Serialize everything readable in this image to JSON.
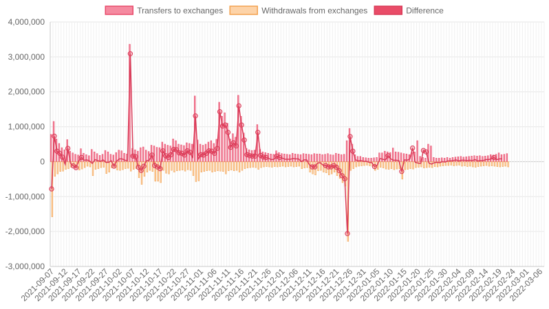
{
  "chart_data": {
    "type": "bar",
    "legend": [
      {
        "label": "Transfers to exchanges",
        "fill": "#f58aa0",
        "stroke": "#e84a6a"
      },
      {
        "label": "Withdrawals from exchanges",
        "fill": "#fdd3a8",
        "stroke": "#f3a14f"
      },
      {
        "label": "Difference",
        "fill": "#e94c68",
        "stroke": "#d93a57"
      }
    ],
    "ylim": [
      -3000000,
      4000000
    ],
    "y_ticks": [
      4000000,
      3000000,
      2000000,
      1000000,
      0,
      -1000000,
      -2000000,
      -3000000
    ],
    "y_tick_labels": [
      "4,000,000",
      "3,000,000",
      "2,000,000",
      "1,000,000",
      "0",
      "-1,000,000",
      "-2,000,000",
      "-3,000,000"
    ],
    "x_start": "2021-09-07",
    "x_end": "2022-03-07",
    "x_tick_labels": [
      "2021-09-07",
      "2021-09-12",
      "2021-09-17",
      "2021-09-22",
      "2021-09-27",
      "2021-10-02",
      "2021-10-07",
      "2021-10-12",
      "2021-10-17",
      "2021-10-22",
      "2021-10-27",
      "2021-11-01",
      "2021-11-06",
      "2021-11-11",
      "2021-11-16",
      "2021-11-21",
      "2021-11-26",
      "2021-12-01",
      "2021-12-06",
      "2021-12-11",
      "2021-12-16",
      "2021-12-21",
      "2021-12-26",
      "2021-12-31",
      "2022-01-05",
      "2022-01-10",
      "2022-01-15",
      "2022-01-20",
      "2022-01-25",
      "2022-01-30",
      "2022-02-04",
      "2022-02-09",
      "2022-02-14",
      "2022-02-19",
      "2022-02-24",
      "2022-03-01",
      "2022-03-06"
    ],
    "series": [
      {
        "name": "Transfers to exchanges",
        "values": [
          780000,
          1150000,
          650000,
          520000,
          400000,
          340000,
          630000,
          300000,
          250000,
          210000,
          190000,
          370000,
          240000,
          200000,
          170000,
          350000,
          280000,
          230000,
          180000,
          210000,
          320000,
          280000,
          210000,
          190000,
          260000,
          330000,
          310000,
          240000,
          220000,
          3360000,
          380000,
          340000,
          300000,
          400000,
          420000,
          330000,
          290000,
          470000,
          450000,
          410000,
          400000,
          560000,
          500000,
          470000,
          450000,
          650000,
          600000,
          500000,
          480000,
          460000,
          540000,
          520000,
          500000,
          1880000,
          620000,
          500000,
          470000,
          500000,
          560000,
          600000,
          520000,
          640000,
          1700000,
          1300000,
          1400000,
          1100000,
          650000,
          800000,
          700000,
          1900000,
          1300000,
          820000,
          380000,
          340000,
          320000,
          330000,
          1060000,
          350000,
          280000,
          260000,
          240000,
          220000,
          210000,
          310000,
          260000,
          230000,
          220000,
          210000,
          200000,
          240000,
          220000,
          210000,
          200000,
          230000,
          220000,
          210000,
          200000,
          230000,
          220000,
          220000,
          200000,
          210000,
          230000,
          200000,
          190000,
          240000,
          220000,
          200000,
          210000,
          600000,
          950000,
          500000,
          200000,
          150000,
          150000,
          120000,
          110000,
          100000,
          100000,
          110000,
          120000,
          250000,
          250000,
          300000,
          280000,
          260000,
          390000,
          280000,
          270000,
          250000,
          230000,
          220000,
          200000,
          260000,
          280000,
          600000,
          150000,
          120000,
          100000,
          500000,
          450000,
          120000,
          100000,
          100000,
          110000,
          100000,
          120000,
          100000,
          120000,
          130000,
          140000,
          150000,
          130000,
          140000,
          150000,
          160000,
          170000,
          160000,
          170000,
          150000,
          160000,
          170000,
          200000,
          190000,
          210000,
          250000,
          200000,
          210000,
          230000
        ]
      },
      {
        "name": "Withdrawals from exchanges",
        "values": [
          -1580000,
          -420000,
          -350000,
          -280000,
          -270000,
          -220000,
          -200000,
          -160000,
          -130000,
          -180000,
          -240000,
          -210000,
          -170000,
          -130000,
          -150000,
          -400000,
          -220000,
          -200000,
          -170000,
          -160000,
          -340000,
          -300000,
          -180000,
          -190000,
          -240000,
          -250000,
          -230000,
          -200000,
          -190000,
          -270000,
          -220000,
          -200000,
          -460000,
          -650000,
          -420000,
          -300000,
          -250000,
          -280000,
          -560000,
          -560000,
          -600000,
          -250000,
          -330000,
          -350000,
          -250000,
          -300000,
          -260000,
          -250000,
          -240000,
          -270000,
          -230000,
          -250000,
          -400000,
          -570000,
          -550000,
          -300000,
          -280000,
          -260000,
          -250000,
          -300000,
          -280000,
          -260000,
          -270000,
          -280000,
          -350000,
          -260000,
          -240000,
          -260000,
          -250000,
          -300000,
          -250000,
          -200000,
          -180000,
          -170000,
          -160000,
          -170000,
          -220000,
          -170000,
          -150000,
          -140000,
          -150000,
          -160000,
          -140000,
          -150000,
          -140000,
          -130000,
          -150000,
          -140000,
          -130000,
          -150000,
          -140000,
          -130000,
          -200000,
          -180000,
          -170000,
          -300000,
          -350000,
          -380000,
          -260000,
          -250000,
          -300000,
          -320000,
          -380000,
          -350000,
          -300000,
          -400000,
          -480000,
          -600000,
          -700000,
          -2280000,
          -250000,
          -200000,
          -150000,
          -130000,
          -120000,
          -110000,
          -100000,
          -120000,
          -130000,
          -250000,
          -220000,
          -160000,
          -180000,
          -210000,
          -220000,
          -200000,
          -230000,
          -210000,
          -200000,
          -500000,
          -230000,
          -220000,
          -200000,
          -210000,
          -170000,
          -160000,
          -150000,
          -180000,
          -170000,
          -160000,
          -170000,
          -140000,
          -150000,
          -130000,
          -120000,
          -110000,
          -110000,
          -100000,
          -120000,
          -110000,
          -100000,
          -130000,
          -120000,
          -140000,
          -130000,
          -150000,
          -160000,
          -140000,
          -130000,
          -120000,
          -110000,
          -130000,
          -120000,
          -130000,
          -140000,
          -150000,
          -140000,
          -130000,
          -150000
        ]
      },
      {
        "name": "Difference",
        "values": [
          -780000,
          730000,
          300000,
          240000,
          130000,
          -80000,
          380000,
          -50000,
          -120000,
          -170000,
          20000,
          120000,
          40000,
          50000,
          20000,
          -50000,
          60000,
          30000,
          10000,
          50000,
          -20000,
          -20000,
          30000,
          -130000,
          20000,
          80000,
          80000,
          40000,
          30000,
          3090000,
          160000,
          140000,
          -160000,
          -250000,
          -130000,
          30000,
          40000,
          190000,
          -110000,
          -150000,
          -200000,
          310000,
          170000,
          120000,
          200000,
          350000,
          340000,
          250000,
          240000,
          190000,
          310000,
          270000,
          100000,
          1310000,
          70000,
          200000,
          190000,
          240000,
          310000,
          300000,
          240000,
          380000,
          1430000,
          1020000,
          1050000,
          840000,
          410000,
          540000,
          450000,
          1600000,
          1050000,
          620000,
          200000,
          170000,
          160000,
          160000,
          840000,
          180000,
          130000,
          120000,
          90000,
          60000,
          70000,
          160000,
          120000,
          100000,
          70000,
          70000,
          70000,
          90000,
          80000,
          80000,
          0,
          50000,
          50000,
          -90000,
          -150000,
          -150000,
          -40000,
          -30000,
          -100000,
          -110000,
          -150000,
          -150000,
          -110000,
          -160000,
          -260000,
          -400000,
          -490000,
          -2060000,
          720000,
          300000,
          50000,
          20000,
          30000,
          10000,
          10000,
          -20000,
          -30000,
          -140000,
          -100000,
          90000,
          70000,
          50000,
          170000,
          80000,
          40000,
          40000,
          30000,
          -280000,
          50000,
          40000,
          80000,
          390000,
          -20000,
          -40000,
          -50000,
          320000,
          280000,
          -40000,
          -70000,
          -30000,
          -20000,
          -30000,
          0,
          -10000,
          20000,
          20000,
          30000,
          50000,
          20000,
          40000,
          40000,
          30000,
          40000,
          30000,
          60000,
          20000,
          30000,
          30000,
          60000,
          60000,
          80000,
          120000,
          60000,
          80000,
          80000
        ]
      }
    ]
  }
}
